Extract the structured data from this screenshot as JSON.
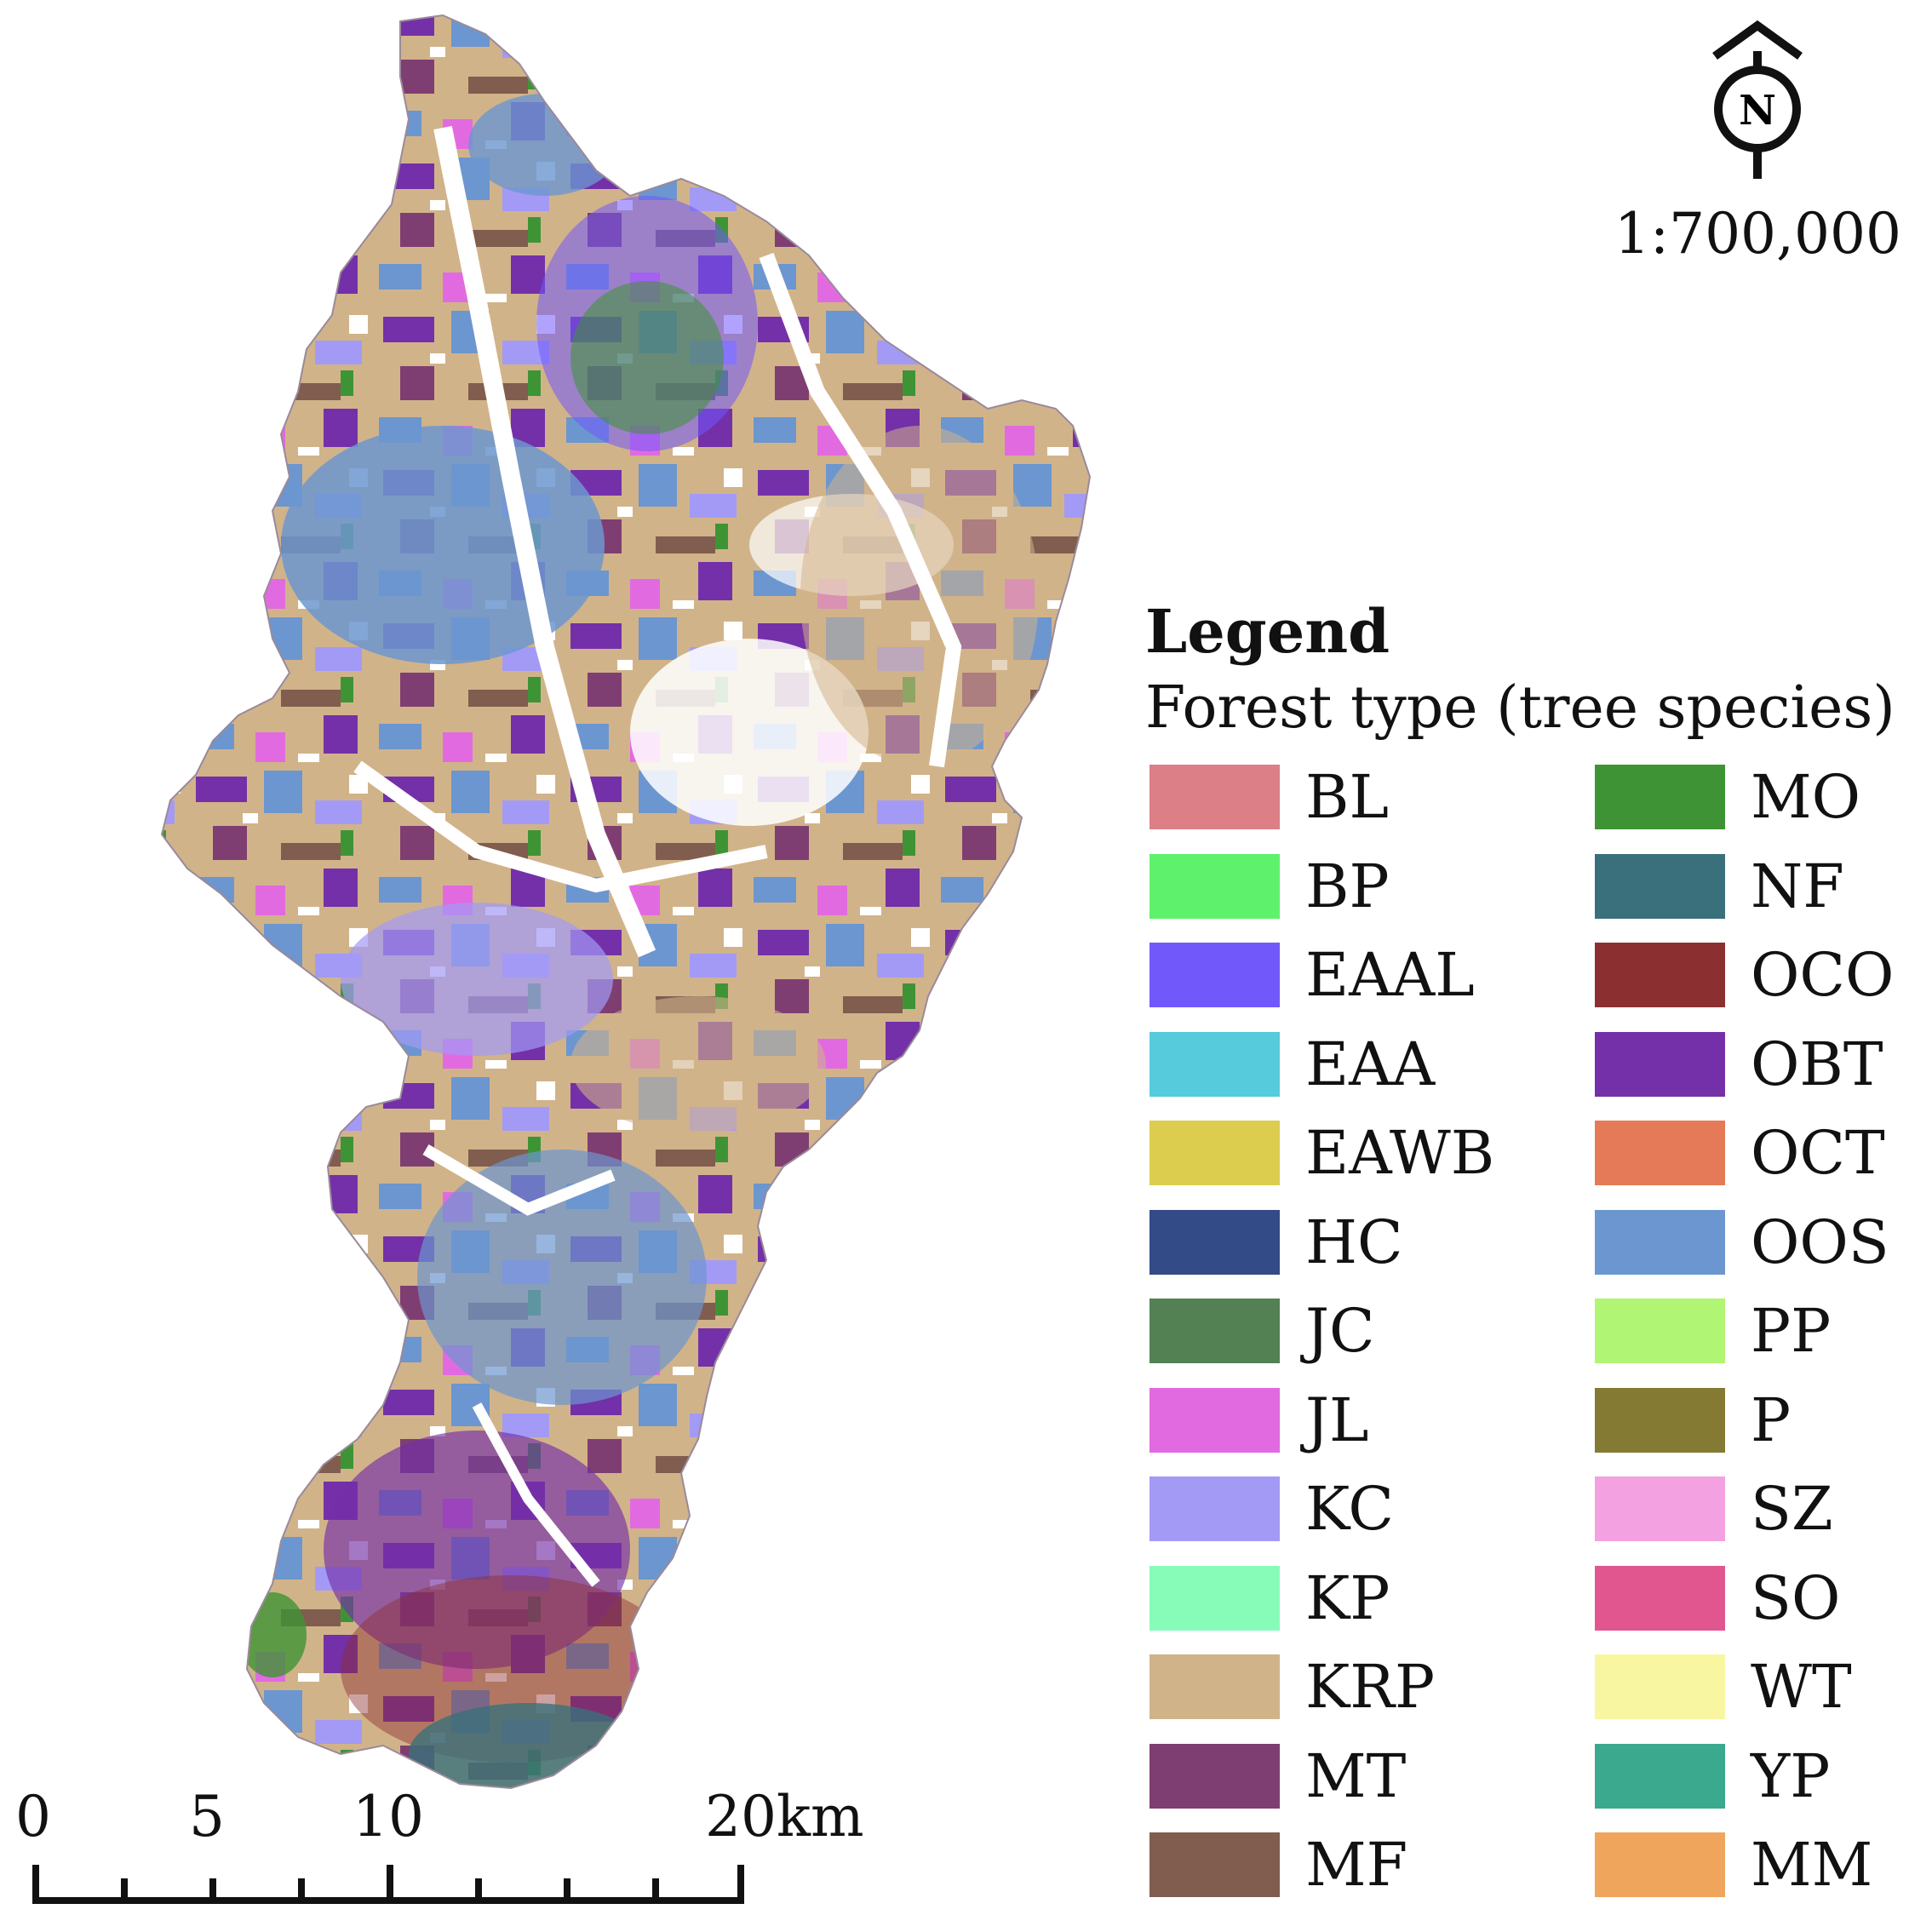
{
  "map": {
    "scale_ratio": "1:700,000",
    "north_label": "N"
  },
  "scalebar": {
    "labels": [
      "0",
      "5",
      "10",
      "20km"
    ]
  },
  "legend": {
    "title": "Legend",
    "subtitle": "Forest type (tree species)",
    "left_items": [
      {
        "code": "BL",
        "color": "#dc7f86"
      },
      {
        "code": "BP",
        "color": "#5ef26c"
      },
      {
        "code": "EAAL",
        "color": "#7158fb"
      },
      {
        "code": "EAA",
        "color": "#56cbdc"
      },
      {
        "code": "EAWB",
        "color": "#dccd4e"
      },
      {
        "code": "HC",
        "color": "#334b86"
      },
      {
        "code": "JC",
        "color": "#538154"
      },
      {
        "code": "JL",
        "color": "#e26ae0"
      },
      {
        "code": "KC",
        "color": "#a39af6"
      },
      {
        "code": "KP",
        "color": "#87fcb9"
      },
      {
        "code": "KRP",
        "color": "#d1b38a"
      },
      {
        "code": "MT",
        "color": "#7f3e71"
      },
      {
        "code": "MF",
        "color": "#805d4f"
      }
    ],
    "right_items": [
      {
        "code": "MO",
        "color": "#3e9435"
      },
      {
        "code": "NF",
        "color": "#39707b"
      },
      {
        "code": "OCO",
        "color": "#8b2f31"
      },
      {
        "code": "OBT",
        "color": "#7430a8"
      },
      {
        "code": "OCT",
        "color": "#e47a57"
      },
      {
        "code": "OOS",
        "color": "#6c96cf"
      },
      {
        "code": "PP",
        "color": "#b1f574"
      },
      {
        "code": "P",
        "color": "#857a33"
      },
      {
        "code": "SZ",
        "color": "#f4a1e1"
      },
      {
        "code": "SO",
        "color": "#e2568f"
      },
      {
        "code": "WT",
        "color": "#f8f6a0"
      },
      {
        "code": "YP",
        "color": "#3ba98d"
      },
      {
        "code": "MM",
        "color": "#f0a55d"
      }
    ]
  }
}
